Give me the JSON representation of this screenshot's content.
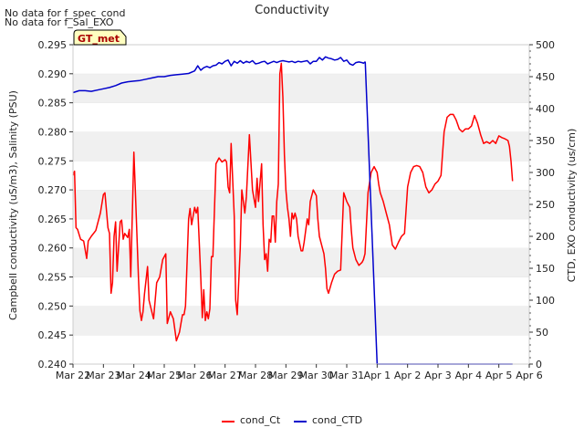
{
  "title": "Conductivity",
  "notes": [
    "No data for f_spec_cond",
    "No data for f_Sal_EXO"
  ],
  "badge": "GT_met",
  "chart_data": {
    "type": "line",
    "title": "Conductivity",
    "ylabel_left": "Campbell conductivity (uS/m3), Salinity (PSU)",
    "ylabel_right": "CTD, EXO conductivity (us/cm)",
    "x_ticks": [
      "Mar 22",
      "Mar 23",
      "Mar 24",
      "Mar 25",
      "Mar 26",
      "Mar 27",
      "Mar 28",
      "Mar 29",
      "Mar 30",
      "Mar 31",
      "Apr 1",
      "Apr 2",
      "Apr 3",
      "Apr 4",
      "Apr 5",
      "Apr 6"
    ],
    "xlim": [
      0,
      15
    ],
    "ylim_left": [
      0.24,
      0.295
    ],
    "yticks_left": [
      "0.240",
      "0.245",
      "0.250",
      "0.255",
      "0.260",
      "0.265",
      "0.270",
      "0.275",
      "0.280",
      "0.285",
      "0.290",
      "0.295"
    ],
    "ylim_right": [
      0,
      500
    ],
    "yticks_right": [
      "0",
      "50",
      "100",
      "150",
      "200",
      "250",
      "300",
      "350",
      "400",
      "450",
      "500"
    ],
    "grid": "horizontal bands",
    "legend_position": "bottom-center",
    "series": [
      {
        "name": "cond_Ct",
        "color": "#ff0000",
        "axis": "left",
        "x": [
          0.0,
          0.05,
          0.1,
          0.15,
          0.25,
          0.35,
          0.45,
          0.5,
          0.6,
          0.75,
          0.9,
          1.0,
          1.05,
          1.15,
          1.2,
          1.25,
          1.3,
          1.35,
          1.4,
          1.45,
          1.55,
          1.6,
          1.65,
          1.7,
          1.8,
          1.85,
          1.9,
          2.0,
          2.05,
          2.15,
          2.2,
          2.25,
          2.3,
          2.35,
          2.45,
          2.5,
          2.6,
          2.65,
          2.75,
          2.85,
          2.95,
          3.05,
          3.1,
          3.2,
          3.3,
          3.4,
          3.5,
          3.55,
          3.6,
          3.65,
          3.7,
          3.8,
          3.85,
          3.9,
          4.0,
          4.05,
          4.1,
          4.2,
          4.25,
          4.3,
          4.35,
          4.4,
          4.45,
          4.5,
          4.55,
          4.6,
          4.7,
          4.8,
          4.9,
          5.0,
          5.05,
          5.1,
          5.15,
          5.2,
          5.3,
          5.35,
          5.4,
          5.5,
          5.55,
          5.6,
          5.65,
          5.7,
          5.8,
          5.9,
          6.0,
          6.05,
          6.1,
          6.2,
          6.25,
          6.3,
          6.35,
          6.4,
          6.45,
          6.5,
          6.55,
          6.6,
          6.65,
          6.7,
          6.75,
          6.8,
          6.85,
          6.9,
          6.95,
          7.0,
          7.05,
          7.1,
          7.15,
          7.2,
          7.25,
          7.3,
          7.35,
          7.4,
          7.5,
          7.55,
          7.6,
          7.7,
          7.75,
          7.8,
          7.9,
          8.0,
          8.05,
          8.1,
          8.2,
          8.25,
          8.3,
          8.35,
          8.4,
          8.5,
          8.6,
          8.7,
          8.8,
          8.9,
          9.0,
          9.1,
          9.15,
          9.2,
          9.3,
          9.4,
          9.5,
          9.55,
          9.6,
          9.7,
          9.8,
          9.9,
          10.0,
          10.05,
          10.1,
          10.2,
          10.3,
          10.4,
          10.5,
          10.6,
          10.7,
          10.8,
          10.9,
          11.0,
          11.1,
          11.2,
          11.3,
          11.4,
          11.5,
          11.6,
          11.7,
          11.8,
          11.9,
          12.0,
          12.1,
          12.2,
          12.3,
          12.4,
          12.5,
          12.6,
          12.7,
          12.8,
          12.9,
          13.0,
          13.1,
          13.2,
          13.3,
          13.4,
          13.5,
          13.6,
          13.7,
          13.8,
          13.9,
          14.0,
          14.1,
          14.2,
          14.3,
          14.35,
          14.4,
          14.45
        ],
        "y": [
          0.2725,
          0.2732,
          0.2635,
          0.2632,
          0.2615,
          0.2612,
          0.2582,
          0.2612,
          0.262,
          0.263,
          0.266,
          0.2692,
          0.2695,
          0.2635,
          0.2625,
          0.2522,
          0.254,
          0.262,
          0.2645,
          0.256,
          0.2645,
          0.2648,
          0.2615,
          0.2625,
          0.2618,
          0.2632,
          0.255,
          0.2765,
          0.27,
          0.255,
          0.2492,
          0.2475,
          0.249,
          0.252,
          0.2568,
          0.251,
          0.2488,
          0.2478,
          0.254,
          0.255,
          0.258,
          0.259,
          0.247,
          0.249,
          0.2478,
          0.244,
          0.2455,
          0.247,
          0.2485,
          0.2485,
          0.25,
          0.265,
          0.2668,
          0.264,
          0.267,
          0.266,
          0.267,
          0.255,
          0.248,
          0.2528,
          0.2475,
          0.249,
          0.2478,
          0.2495,
          0.2585,
          0.2585,
          0.2745,
          0.2755,
          0.2748,
          0.2752,
          0.2748,
          0.2705,
          0.2695,
          0.278,
          0.2655,
          0.251,
          0.2485,
          0.26,
          0.27,
          0.268,
          0.266,
          0.2688,
          0.2795,
          0.27,
          0.267,
          0.272,
          0.268,
          0.2745,
          0.264,
          0.258,
          0.259,
          0.256,
          0.2615,
          0.261,
          0.2655,
          0.2655,
          0.261,
          0.268,
          0.271,
          0.29,
          0.2918,
          0.286,
          0.276,
          0.27,
          0.267,
          0.265,
          0.262,
          0.266,
          0.265,
          0.266,
          0.265,
          0.262,
          0.2595,
          0.2595,
          0.261,
          0.265,
          0.264,
          0.268,
          0.27,
          0.269,
          0.265,
          0.262,
          0.26,
          0.259,
          0.2565,
          0.253,
          0.2522,
          0.254,
          0.2555,
          0.256,
          0.2562,
          0.2695,
          0.268,
          0.267,
          0.263,
          0.26,
          0.258,
          0.257,
          0.2575,
          0.258,
          0.259,
          0.2695,
          0.273,
          0.274,
          0.273,
          0.271,
          0.2695,
          0.268,
          0.266,
          0.264,
          0.2605,
          0.2598,
          0.261,
          0.262,
          0.2625,
          0.2705,
          0.273,
          0.274,
          0.2742,
          0.274,
          0.273,
          0.2705,
          0.2695,
          0.27,
          0.271,
          0.2715,
          0.2725,
          0.28,
          0.2825,
          0.283,
          0.283,
          0.282,
          0.2805,
          0.28,
          0.2805,
          0.2805,
          0.281,
          0.2828,
          0.2815,
          0.2795,
          0.278,
          0.2783,
          0.278,
          0.2785,
          0.278,
          0.2793,
          0.279,
          0.2788,
          0.2785,
          0.2775,
          0.275,
          0.2715
        ]
      },
      {
        "name": "cond_CTD",
        "color": "#0000cc",
        "axis": "right",
        "x": [
          0.0,
          0.2,
          0.4,
          0.6,
          0.8,
          1.0,
          1.2,
          1.4,
          1.6,
          1.8,
          2.0,
          2.2,
          2.4,
          2.6,
          2.8,
          3.0,
          3.2,
          3.4,
          3.6,
          3.8,
          4.0,
          4.1,
          4.2,
          4.3,
          4.4,
          4.5,
          4.6,
          4.7,
          4.8,
          4.9,
          5.0,
          5.1,
          5.2,
          5.3,
          5.4,
          5.5,
          5.6,
          5.7,
          5.8,
          5.9,
          6.0,
          6.1,
          6.2,
          6.3,
          6.4,
          6.5,
          6.6,
          6.7,
          6.8,
          6.9,
          7.0,
          7.1,
          7.2,
          7.3,
          7.4,
          7.5,
          7.6,
          7.7,
          7.8,
          7.9,
          8.0,
          8.1,
          8.2,
          8.3,
          8.4,
          8.5,
          8.6,
          8.7,
          8.8,
          8.9,
          9.0,
          9.1,
          9.2,
          9.3,
          9.4,
          9.5,
          9.55,
          9.6,
          9.61,
          10.0,
          11.0,
          12.0,
          13.0,
          14.0,
          14.45
        ],
        "y": [
          425,
          428,
          428,
          427,
          429,
          431,
          433,
          436,
          440,
          442,
          443,
          444,
          446,
          448,
          450,
          450,
          452,
          453,
          454,
          455,
          459,
          467,
          460,
          464,
          466,
          464,
          467,
          468,
          472,
          470,
          474,
          476,
          467,
          474,
          471,
          475,
          471,
          474,
          472,
          475,
          470,
          471,
          473,
          474,
          470,
          472,
          474,
          472,
          474,
          475,
          474,
          473,
          474,
          472,
          474,
          473,
          474,
          475,
          470,
          474,
          474,
          480,
          476,
          481,
          479,
          478,
          476,
          477,
          480,
          474,
          476,
          470,
          468,
          472,
          473,
          472,
          471,
          473,
          472,
          0,
          0,
          0,
          0,
          0,
          0
        ]
      }
    ]
  }
}
